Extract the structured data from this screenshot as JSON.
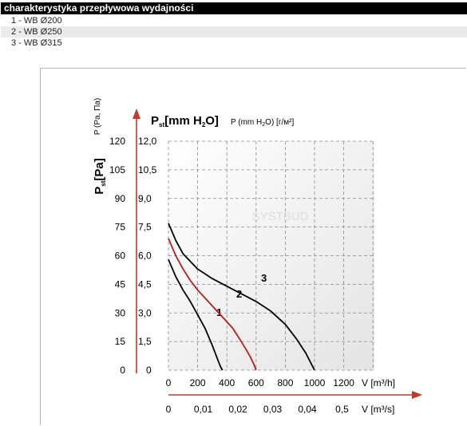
{
  "header": {
    "title": "charakterystyka przepływowa wydajności"
  },
  "legend_rows": [
    {
      "label": "1 - WB Ø200"
    },
    {
      "label": "2 - WB Ø250"
    },
    {
      "label": "3 - WB Ø315"
    }
  ],
  "chart_data": {
    "type": "line",
    "ylabel_main": "P",
    "ylabel_main_sub": "st",
    "ylabel_main_unit": "[Pa]",
    "ylabel_alt": "P (Pa, Па)",
    "y_title_main": "P",
    "y_title_main_sub": "st",
    "y_title_main_unit": "[mm H",
    "y_title_main_sub2": "2",
    "y_title_main_unit2": "O]",
    "y_title_alt": "P (mm H",
    "y_title_alt_sub": "2",
    "y_title_alt_unit": "O) [г/м²]",
    "y_pa_ticks": [
      "0",
      "15",
      "30",
      "45",
      "60",
      "75",
      "90",
      "105",
      "120"
    ],
    "y_mm_ticks": [
      "0",
      "1,5",
      "3,0",
      "4,5",
      "6,0",
      "7,5",
      "9,0",
      "10,5",
      "12,0"
    ],
    "x_m3h_ticks": [
      "0",
      "200",
      "400",
      "600",
      "800",
      "1000",
      "1200"
    ],
    "x_m3h_label": "V [m³/h]",
    "x_m3s_ticks": [
      "0",
      "0,01",
      "0,02",
      "0,03",
      "0,04",
      "0,5"
    ],
    "x_m3s_label": "V [m³/s]",
    "xlim": [
      0,
      1400
    ],
    "ylim": [
      0,
      120
    ],
    "grid": true,
    "watermark": "SYSTBUD",
    "series": [
      {
        "name": "1",
        "color": "#000000",
        "x": [
          0,
          50,
          100,
          150,
          200,
          250,
          300,
          330,
          355,
          370
        ],
        "y": [
          58,
          49,
          42,
          36,
          29,
          22,
          13,
          7,
          2,
          0
        ]
      },
      {
        "name": "2",
        "color": "#b02020",
        "x": [
          0,
          50,
          100,
          150,
          200,
          260,
          320,
          380,
          440,
          490,
          530,
          560,
          585,
          600
        ],
        "y": [
          69,
          60,
          53,
          47,
          42,
          37,
          32,
          27,
          22,
          16,
          11,
          7,
          3,
          0
        ]
      },
      {
        "name": "3",
        "color": "#000000",
        "x": [
          0,
          50,
          100,
          200,
          300,
          400,
          500,
          600,
          700,
          800,
          880,
          940,
          980,
          1000
        ],
        "y": [
          77,
          68,
          61,
          53,
          48,
          44,
          40,
          36,
          31,
          24,
          16,
          9,
          3,
          0
        ]
      }
    ]
  }
}
